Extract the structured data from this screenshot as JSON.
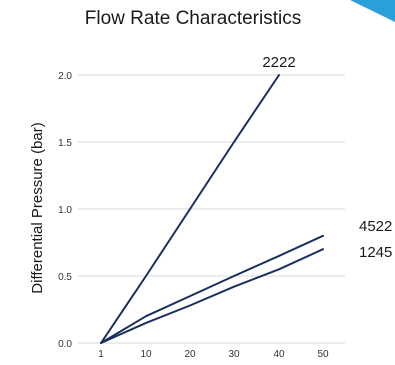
{
  "chart_data": {
    "type": "line",
    "title": "Flow Rate Characteristics",
    "xlabel": "",
    "ylabel": "Differential Pressure (bar)",
    "x_ticks": [
      "1",
      "10",
      "20",
      "30",
      "40",
      "50"
    ],
    "y_ticks": [
      "0.0",
      "0.5",
      "1.0",
      "1.5",
      "2.0"
    ],
    "ylim": [
      0,
      2.0
    ],
    "grid": "horizontal",
    "legend": "none",
    "series": [
      {
        "name": "2222",
        "x": [
          1,
          10,
          20,
          30,
          40
        ],
        "values": [
          0,
          0.5,
          1.0,
          1.5,
          2.0
        ]
      },
      {
        "name": "4522",
        "x": [
          1,
          10,
          20,
          30,
          40,
          50
        ],
        "values": [
          0,
          0.2,
          0.35,
          0.5,
          0.65,
          0.8
        ]
      },
      {
        "name": "1245",
        "x": [
          1,
          10,
          20,
          30,
          40,
          50
        ],
        "values": [
          0,
          0.15,
          0.28,
          0.42,
          0.55,
          0.7
        ]
      }
    ],
    "colors": {
      "line": "#1b2f5e",
      "grid": "#d9d9d9",
      "accent": "#2a9fd8"
    }
  }
}
